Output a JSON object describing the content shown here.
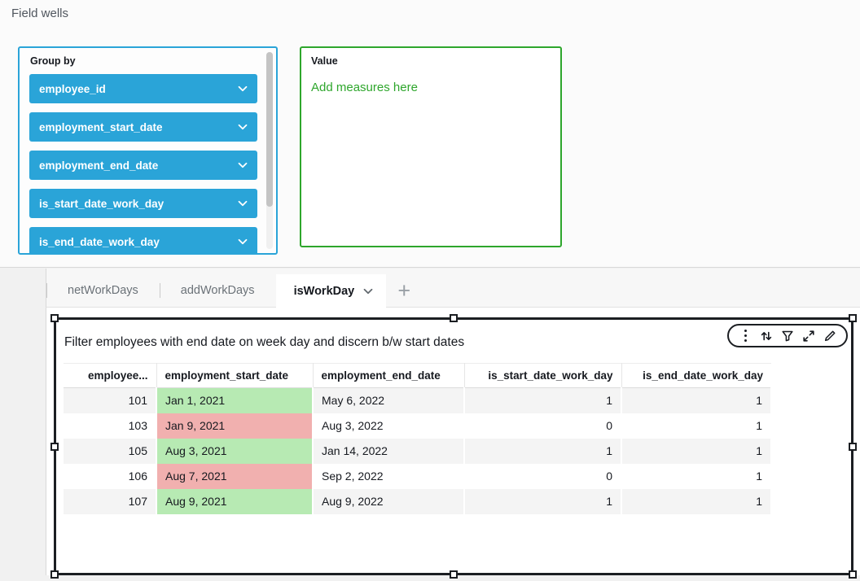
{
  "page": {
    "title": "Field wells"
  },
  "field_wells": {
    "group_by": {
      "label": "Group by",
      "fields": [
        "employee_id",
        "employment_start_date",
        "employment_end_date",
        "is_start_date_work_day",
        "is_end_date_work_day"
      ]
    },
    "value": {
      "label": "Value",
      "empty_text": "Add measures here"
    }
  },
  "sheet_tabs": {
    "items": [
      {
        "label": "netWorkDays",
        "active": false
      },
      {
        "label": "addWorkDays",
        "active": false
      },
      {
        "label": "isWorkDay",
        "active": true
      }
    ],
    "add_button": "+"
  },
  "visual": {
    "title": "Filter employees with end date on week day and discern b/w start dates",
    "toolbar_icons": [
      "menu-icon",
      "sort-icon",
      "filter-icon",
      "expand-icon",
      "edit-icon"
    ],
    "table": {
      "columns": [
        {
          "label": "employee...",
          "align": "right"
        },
        {
          "label": "employment_start_date",
          "align": "left"
        },
        {
          "label": "employment_end_date",
          "align": "left"
        },
        {
          "label": "is_start_date_work_day",
          "align": "right"
        },
        {
          "label": "is_end_date_work_day",
          "align": "right"
        }
      ],
      "rows": [
        {
          "cells": [
            {
              "text": "101"
            },
            {
              "text": "Jan 1, 2021",
              "highlight": "green"
            },
            {
              "text": "May 6, 2022"
            },
            {
              "text": "1"
            },
            {
              "text": "1"
            }
          ]
        },
        {
          "cells": [
            {
              "text": "103"
            },
            {
              "text": "Jan 9, 2021",
              "highlight": "red"
            },
            {
              "text": "Aug 3, 2022"
            },
            {
              "text": "0"
            },
            {
              "text": "1"
            }
          ]
        },
        {
          "cells": [
            {
              "text": "105"
            },
            {
              "text": "Aug 3, 2021",
              "highlight": "green"
            },
            {
              "text": "Jan 14, 2022"
            },
            {
              "text": "1"
            },
            {
              "text": "1"
            }
          ]
        },
        {
          "cells": [
            {
              "text": "106"
            },
            {
              "text": "Aug 7, 2021",
              "highlight": "red"
            },
            {
              "text": "Sep 2, 2022"
            },
            {
              "text": "0"
            },
            {
              "text": "1"
            }
          ]
        },
        {
          "cells": [
            {
              "text": "107"
            },
            {
              "text": "Aug 9, 2021",
              "highlight": "green"
            },
            {
              "text": "Aug 9, 2022"
            },
            {
              "text": "1"
            },
            {
              "text": "1"
            }
          ]
        }
      ]
    }
  },
  "colors": {
    "pill_blue": "#2AA4D8",
    "well_green": "#2EA62C",
    "cell_green": "#B7EAB3",
    "cell_red": "#F1B0AF",
    "row_stripe": "#F4F4F4"
  }
}
